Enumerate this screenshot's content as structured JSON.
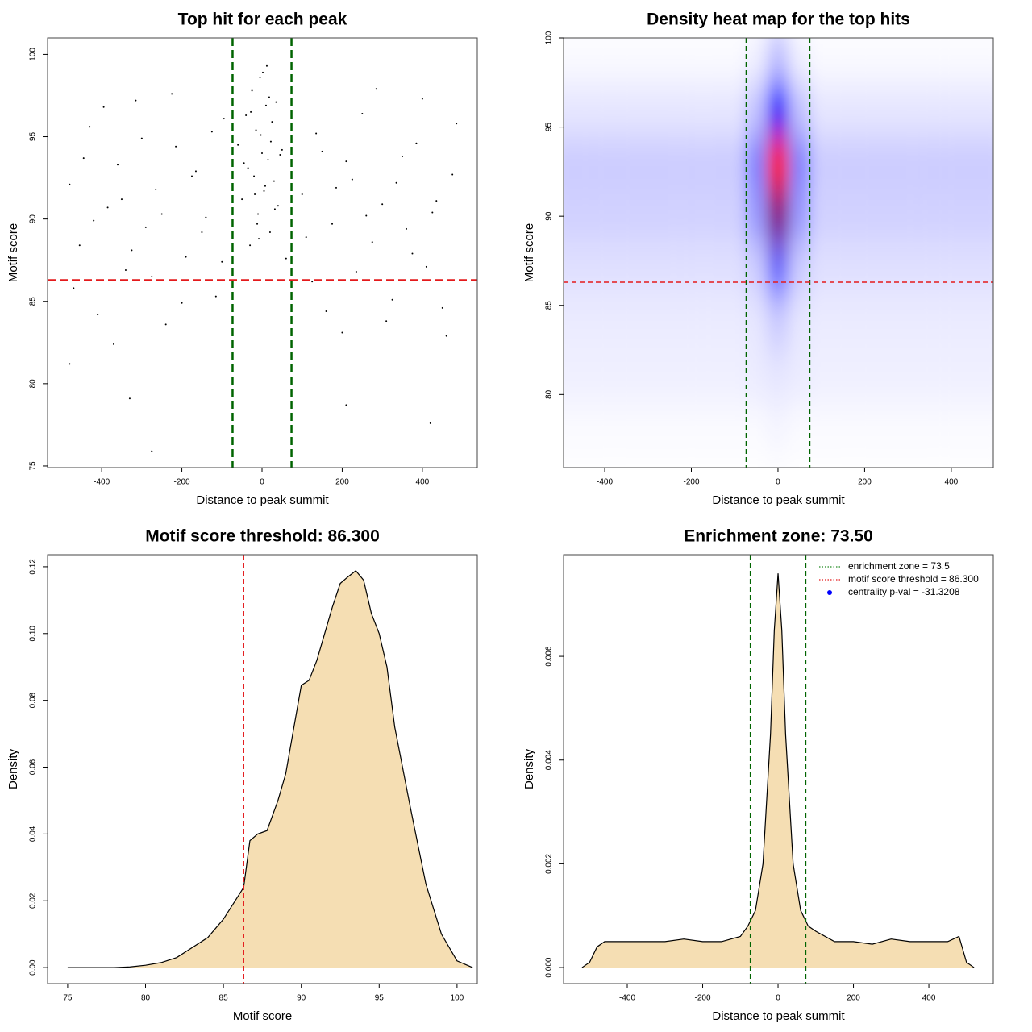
{
  "chart_data": [
    {
      "type": "scatter",
      "title": "Top hit for each peak",
      "x_label": "Distance to peak summit",
      "y_label": "Motif score",
      "xlim": [
        -535,
        537
      ],
      "ylim": [
        74.9,
        101
      ],
      "xticks": [
        -400,
        -200,
        0,
        200,
        400
      ],
      "yticks": [
        75,
        80,
        85,
        90,
        95,
        100
      ],
      "color": "#000000",
      "x": [
        -480,
        -455,
        -430,
        -410,
        -385,
        -360,
        -340,
        -315,
        -290,
        -265,
        -240,
        -215,
        -190,
        -165,
        -140,
        -115,
        -95,
        -470,
        -445,
        -420,
        -395,
        -370,
        -350,
        -325,
        -300,
        -275,
        -250,
        -225,
        -200,
        -175,
        -150,
        -125,
        -100,
        100,
        125,
        150,
        175,
        200,
        225,
        250,
        275,
        300,
        325,
        350,
        375,
        400,
        425,
        450,
        475,
        110,
        135,
        160,
        185,
        210,
        235,
        260,
        285,
        310,
        335,
        360,
        385,
        410,
        435,
        460,
        485,
        -60,
        -50,
        -40,
        -35,
        -30,
        -25,
        -20,
        -15,
        -10,
        -5,
        0,
        5,
        10,
        15,
        20,
        25,
        30,
        35,
        40,
        50,
        60,
        -45,
        -28,
        -12,
        -3,
        8,
        18,
        32,
        45,
        -18,
        2,
        22,
        -8,
        12,
        -275,
        420,
        -330,
        210,
        -480
      ],
      "values": [
        92.1,
        88.4,
        95.6,
        84.2,
        90.7,
        93.3,
        86.9,
        97.2,
        89.5,
        91.8,
        83.6,
        94.4,
        87.7,
        92.9,
        90.1,
        85.3,
        96.1,
        85.8,
        93.7,
        89.9,
        96.8,
        82.4,
        91.2,
        88.1,
        94.9,
        86.5,
        90.3,
        97.6,
        84.9,
        92.6,
        89.2,
        95.3,
        87.4,
        91.5,
        86.2,
        94.1,
        89.7,
        83.1,
        92.4,
        96.4,
        88.6,
        90.9,
        85.1,
        93.8,
        87.9,
        97.3,
        90.4,
        84.6,
        92.7,
        88.9,
        95.2,
        84.4,
        91.9,
        93.5,
        86.8,
        90.2,
        97.9,
        83.8,
        92.2,
        89.4,
        94.6,
        87.1,
        91.1,
        82.9,
        95.8,
        94.5,
        91.2,
        96.3,
        93.1,
        88.4,
        97.8,
        92.6,
        95.4,
        90.3,
        98.6,
        94.0,
        91.7,
        96.9,
        93.6,
        89.2,
        95.9,
        92.3,
        97.1,
        90.8,
        94.2,
        87.6,
        93.4,
        96.5,
        89.7,
        95.1,
        92.0,
        97.4,
        90.6,
        93.9,
        91.5,
        98.9,
        94.7,
        88.8,
        99.3,
        75.9,
        77.6,
        79.1,
        78.7,
        81.2
      ],
      "vlines": [
        -73.5,
        73.5
      ],
      "vline_color": "#006400",
      "hlines": [
        86.3
      ],
      "hline_color": "#e41a1c"
    },
    {
      "type": "heatmap",
      "title": "Density heat map for the top hits",
      "x_label": "Distance to peak summit",
      "y_label": "Motif score",
      "xlim": [
        -495,
        497
      ],
      "ylim": [
        75.9,
        100
      ],
      "xticks": [
        -400,
        -200,
        0,
        200,
        400
      ],
      "yticks": [
        80,
        85,
        90,
        95,
        100
      ],
      "colors": [
        "#ffffff",
        "#0000ff",
        "#ff0000"
      ],
      "x": [
        -500,
        -450,
        -400,
        -350,
        -300,
        -250,
        -200,
        -150,
        -100,
        -50,
        0,
        50,
        100,
        150,
        200,
        250,
        300,
        350,
        400,
        450,
        500
      ],
      "y": [
        78,
        81,
        84,
        87,
        90,
        93,
        96,
        99
      ],
      "z": [
        [
          0.01,
          0.01,
          0.01,
          0.01,
          0.01,
          0.01,
          0.01,
          0.01,
          0.01,
          0.01,
          0.02,
          0.01,
          0.01,
          0.01,
          0.01,
          0.01,
          0.01,
          0.01,
          0.01,
          0.01,
          0.01
        ],
        [
          0.03,
          0.03,
          0.03,
          0.03,
          0.03,
          0.03,
          0.03,
          0.03,
          0.03,
          0.04,
          0.05,
          0.04,
          0.03,
          0.03,
          0.03,
          0.03,
          0.03,
          0.03,
          0.03,
          0.03,
          0.03
        ],
        [
          0.04,
          0.04,
          0.04,
          0.04,
          0.04,
          0.04,
          0.04,
          0.04,
          0.04,
          0.05,
          0.1,
          0.05,
          0.04,
          0.04,
          0.04,
          0.04,
          0.04,
          0.04,
          0.04,
          0.04,
          0.04
        ],
        [
          0.06,
          0.06,
          0.06,
          0.06,
          0.06,
          0.06,
          0.06,
          0.06,
          0.06,
          0.1,
          0.3,
          0.1,
          0.06,
          0.06,
          0.06,
          0.06,
          0.06,
          0.06,
          0.06,
          0.06,
          0.06
        ],
        [
          0.09,
          0.09,
          0.09,
          0.09,
          0.09,
          0.09,
          0.09,
          0.09,
          0.09,
          0.2,
          0.75,
          0.2,
          0.09,
          0.09,
          0.09,
          0.09,
          0.09,
          0.09,
          0.09,
          0.09,
          0.09
        ],
        [
          0.1,
          0.1,
          0.1,
          0.1,
          0.1,
          0.1,
          0.1,
          0.1,
          0.1,
          0.25,
          1,
          0.25,
          0.1,
          0.1,
          0.1,
          0.1,
          0.1,
          0.1,
          0.1,
          0.1,
          0.1
        ],
        [
          0.05,
          0.05,
          0.05,
          0.05,
          0.05,
          0.05,
          0.05,
          0.05,
          0.05,
          0.12,
          0.5,
          0.12,
          0.05,
          0.05,
          0.05,
          0.05,
          0.05,
          0.05,
          0.05,
          0.05,
          0.05
        ],
        [
          0.01,
          0.01,
          0.01,
          0.01,
          0.01,
          0.01,
          0.01,
          0.01,
          0.01,
          0.03,
          0.12,
          0.03,
          0.01,
          0.01,
          0.01,
          0.01,
          0.01,
          0.01,
          0.01,
          0.01,
          0.01
        ]
      ],
      "vlines": [
        -73.5,
        73.5
      ],
      "vline_color": "#006400",
      "hlines": [
        86.3
      ],
      "hline_color": "#e41a1c"
    },
    {
      "type": "area",
      "title": "Motif score threshold: 86.300",
      "x_label": "Motif score",
      "y_label": "Density",
      "xlim": [
        73.71,
        101.3
      ],
      "ylim": [
        -0.0048,
        0.1236
      ],
      "xticks": [
        75,
        80,
        85,
        90,
        95,
        100
      ],
      "yticks": [
        {
          "value": 0,
          "label": "0.00"
        },
        {
          "value": 0.02,
          "label": "0.02"
        },
        {
          "value": 0.04,
          "label": "0.04"
        },
        {
          "value": 0.06,
          "label": "0.06"
        },
        {
          "value": 0.08,
          "label": "0.08"
        },
        {
          "value": 0.1,
          "label": "0.10"
        },
        {
          "value": 0.12,
          "label": "0.12"
        }
      ],
      "color": "#f5deb3",
      "x": [
        75,
        78,
        79,
        80,
        81,
        82,
        83,
        84,
        85,
        86.3,
        86.7,
        87.2,
        87.8,
        88.5,
        89,
        90,
        90.5,
        91,
        91.5,
        92,
        92.5,
        93,
        93.5,
        94,
        94.5,
        95,
        95.5,
        96,
        97,
        98,
        99,
        100,
        101
      ],
      "values": [
        0,
        0,
        0.0002,
        0.0007,
        0.0015,
        0.003,
        0.006,
        0.009,
        0.0145,
        0.024,
        0.038,
        0.04,
        0.041,
        0.05,
        0.058,
        0.0845,
        0.086,
        0.092,
        0.1,
        0.108,
        0.115,
        0.117,
        0.1188,
        0.116,
        0.106,
        0.1,
        0.09,
        0.072,
        0.048,
        0.025,
        0.01,
        0.002,
        0
      ],
      "vlines": [
        86.3
      ],
      "vline_color": "#e41a1c"
    },
    {
      "type": "area",
      "title": "Enrichment zone: 73.50",
      "x_label": "Distance to peak summit",
      "y_label": "Density",
      "xlim": [
        -569,
        571
      ],
      "ylim": [
        -0.00031,
        0.00796
      ],
      "xticks": [
        -400,
        -200,
        0,
        200,
        400
      ],
      "yticks": [
        {
          "value": 0,
          "label": "0.000"
        },
        {
          "value": 0.002,
          "label": "0.002"
        },
        {
          "value": 0.004,
          "label": "0.004"
        },
        {
          "value": 0.006,
          "label": "0.006"
        }
      ],
      "color": "#f5deb3",
      "x": [
        -520,
        -500,
        -480,
        -460,
        -400,
        -350,
        -300,
        -250,
        -200,
        -150,
        -100,
        -80,
        -60,
        -40,
        -20,
        -10,
        0,
        10,
        20,
        40,
        60,
        80,
        100,
        150,
        200,
        250,
        300,
        350,
        400,
        450,
        480,
        500,
        520
      ],
      "values": [
        0,
        0.0001,
        0.0004,
        0.0005,
        0.0005,
        0.0005,
        0.0005,
        0.00055,
        0.0005,
        0.0005,
        0.0006,
        0.0008,
        0.0011,
        0.002,
        0.0045,
        0.0065,
        0.0076,
        0.0065,
        0.0045,
        0.002,
        0.0011,
        0.0008,
        0.0007,
        0.0005,
        0.0005,
        0.00045,
        0.00055,
        0.0005,
        0.0005,
        0.0005,
        0.0006,
        0.0001,
        0
      ],
      "vlines": [
        -73.5,
        73.5
      ],
      "vline_color": "#006400",
      "legend_position": "top-right",
      "legend": [
        {
          "label": "enrichment zone = 73.5",
          "color": "#228b22",
          "style": "dotted"
        },
        {
          "label": "motif score threshold = 86.300",
          "color": "#e41a1c",
          "style": "dotted"
        },
        {
          "label": "centrality p-val = -31.3208",
          "color": "#0000ff",
          "style": "point"
        }
      ]
    }
  ]
}
